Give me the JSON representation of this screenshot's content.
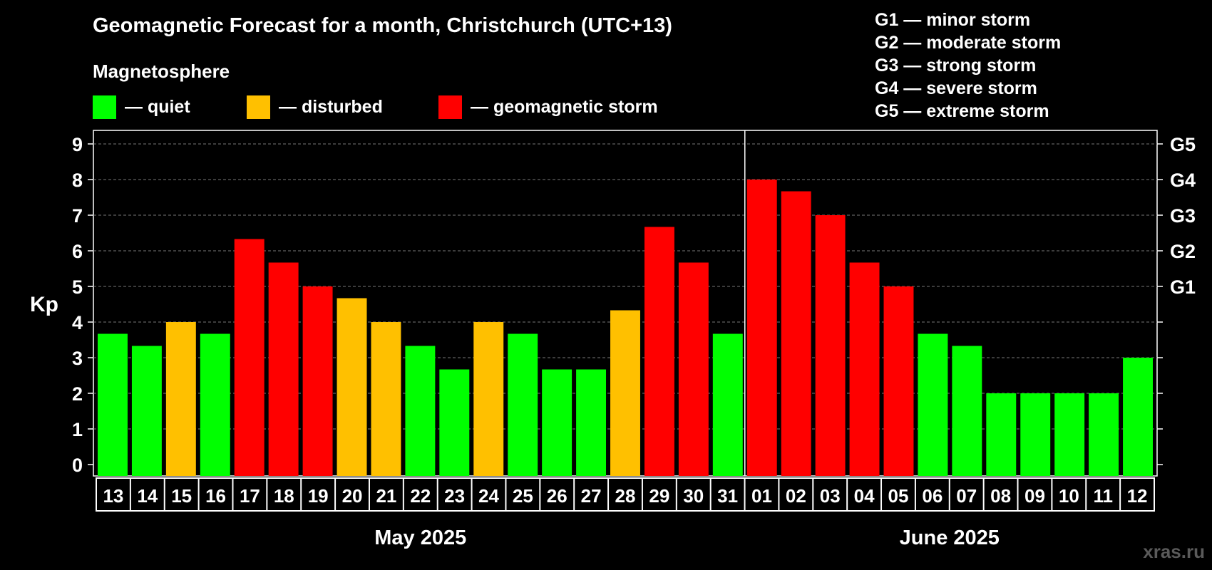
{
  "title": "Geomagnetic Forecast for a month, Christchurch (UTC+13)",
  "subtitle": "Magnetosphere",
  "legend": [
    {
      "label": "— quiet",
      "color": "#00ff00"
    },
    {
      "label": "— disturbed",
      "color": "#ffc000"
    },
    {
      "label": "— geomagnetic storm",
      "color": "#ff0000"
    }
  ],
  "g_scale": [
    "G1 — minor storm",
    "G2 — moderate storm",
    "G3 — strong storm",
    "G4 — severe storm",
    "G5 — extreme storm"
  ],
  "watermark": "xras.ru",
  "chart_data": {
    "type": "bar",
    "ylabel": "Kp",
    "ylim": [
      0,
      9
    ],
    "yticks": [
      0,
      1,
      2,
      3,
      4,
      5,
      6,
      7,
      8,
      9
    ],
    "right_axis_labels": [
      {
        "kp": 5,
        "label": "G1"
      },
      {
        "kp": 6,
        "label": "G2"
      },
      {
        "kp": 7,
        "label": "G3"
      },
      {
        "kp": 8,
        "label": "G4"
      },
      {
        "kp": 9,
        "label": "G5"
      }
    ],
    "grid": "horizontal dashed",
    "categories": [
      "13",
      "14",
      "15",
      "16",
      "17",
      "18",
      "19",
      "20",
      "21",
      "22",
      "23",
      "24",
      "25",
      "26",
      "27",
      "28",
      "29",
      "30",
      "31",
      "01",
      "02",
      "03",
      "04",
      "05",
      "06",
      "07",
      "08",
      "09",
      "10",
      "11",
      "12"
    ],
    "values": [
      3.67,
      3.33,
      4,
      3.67,
      6.33,
      5.67,
      5,
      4.67,
      4,
      3.33,
      2.67,
      4,
      3.67,
      2.67,
      2.67,
      4.33,
      6.67,
      5.67,
      3.67,
      8,
      7.67,
      7,
      5.67,
      5,
      3.67,
      3.33,
      2,
      2,
      2,
      2,
      3
    ],
    "colors": [
      "#00ff00",
      "#00ff00",
      "#ffc000",
      "#00ff00",
      "#ff0000",
      "#ff0000",
      "#ff0000",
      "#ffc000",
      "#ffc000",
      "#00ff00",
      "#00ff00",
      "#ffc000",
      "#00ff00",
      "#00ff00",
      "#00ff00",
      "#ffc000",
      "#ff0000",
      "#ff0000",
      "#00ff00",
      "#ff0000",
      "#ff0000",
      "#ff0000",
      "#ff0000",
      "#ff0000",
      "#00ff00",
      "#00ff00",
      "#00ff00",
      "#00ff00",
      "#00ff00",
      "#00ff00",
      "#00ff00"
    ],
    "months": [
      {
        "label": "May 2025",
        "from": 0,
        "to": 18
      },
      {
        "label": "June 2025",
        "from": 19,
        "to": 30
      }
    ]
  }
}
